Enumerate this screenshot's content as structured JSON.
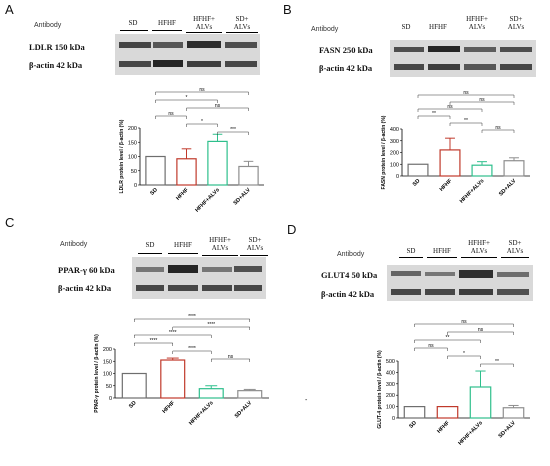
{
  "panels": [
    {
      "label": "A",
      "antibody_header": "Antibody",
      "groups": [
        "SD",
        "HFHF",
        "HFHF+\nALVs",
        "SD+\nALVs"
      ],
      "band_labels": [
        "LDLR  150 kDa",
        "β-actin 42 kDa"
      ],
      "chart_data": {
        "type": "bar",
        "categories": [
          "SD",
          "HFHF",
          "HFHF+ALVs",
          "SD+ALV"
        ],
        "values": [
          100,
          92,
          153,
          65
        ],
        "errors": [
          0,
          35,
          25,
          18
        ],
        "colors": [
          "#6e6e6e",
          "#c0392b",
          "#2ebf8c",
          "#8e8e8e"
        ],
        "ylabel": "LDLR protein level / β-actin (%)",
        "ylim": [
          0,
          200
        ],
        "yticks": [
          0,
          50,
          100,
          150,
          200
        ],
        "brackets": [
          {
            "from": 0,
            "to": 3,
            "label": "ns"
          },
          {
            "from": 0,
            "to": 2,
            "label": "*"
          },
          {
            "from": 1,
            "to": 3,
            "label": "ns"
          },
          {
            "from": 0,
            "to": 1,
            "label": "ns"
          },
          {
            "from": 1,
            "to": 2,
            "label": "*"
          },
          {
            "from": 2,
            "to": 3,
            "label": "***"
          }
        ]
      }
    },
    {
      "label": "B",
      "antibody_header": "Antibody",
      "groups": [
        "SD",
        "HFHF",
        "HFHF+\nALVs",
        "SD+\nALVs"
      ],
      "band_labels": [
        "FASN 250 kDa",
        "β-actin 42 kDa"
      ],
      "chart_data": {
        "type": "bar",
        "categories": [
          "SD",
          "HFHF",
          "HFHF+ALVs",
          "SD+ALV"
        ],
        "values": [
          100,
          222,
          92,
          130
        ],
        "errors": [
          0,
          100,
          30,
          25
        ],
        "colors": [
          "#6e6e6e",
          "#c0392b",
          "#2ebf8c",
          "#8e8e8e"
        ],
        "ylabel": "FASN protein level / β-actin (%)",
        "ylim": [
          0,
          400
        ],
        "yticks": [
          0,
          100,
          200,
          300,
          400
        ],
        "brackets": [
          {
            "from": 0,
            "to": 3,
            "label": "ns"
          },
          {
            "from": 1,
            "to": 3,
            "label": "ns"
          },
          {
            "from": 0,
            "to": 2,
            "label": "ns"
          },
          {
            "from": 0,
            "to": 1,
            "label": "**"
          },
          {
            "from": 1,
            "to": 2,
            "label": "**"
          },
          {
            "from": 2,
            "to": 3,
            "label": "ns"
          }
        ]
      }
    },
    {
      "label": "C",
      "antibody_header": "Antibody",
      "groups": [
        "SD",
        "HFHF",
        "HFHF+\nALVs",
        "SD+\nALVs"
      ],
      "band_labels": [
        "PPAR-γ 60 kDa",
        "β-actin 42 kDa"
      ],
      "chart_data": {
        "type": "bar",
        "categories": [
          "SD",
          "HFHF",
          "HFHF+ALVs",
          "SD+ALV"
        ],
        "values": [
          100,
          155,
          38,
          30
        ],
        "errors": [
          0,
          8,
          12,
          5
        ],
        "colors": [
          "#6e6e6e",
          "#c0392b",
          "#2ebf8c",
          "#8e8e8e"
        ],
        "ylabel": "PPAR-γ protein level / β-actin (%)",
        "ylim": [
          0,
          200
        ],
        "yticks": [
          0,
          50,
          100,
          150,
          200
        ],
        "brackets": [
          {
            "from": 0,
            "to": 3,
            "label": "****"
          },
          {
            "from": 1,
            "to": 3,
            "label": "****"
          },
          {
            "from": 0,
            "to": 2,
            "label": "****"
          },
          {
            "from": 0,
            "to": 1,
            "label": "****"
          },
          {
            "from": 1,
            "to": 2,
            "label": "****"
          },
          {
            "from": 2,
            "to": 3,
            "label": "ns"
          }
        ]
      }
    },
    {
      "label": "D",
      "antibody_header": "Antibody",
      "groups": [
        "SD",
        "HFHF",
        "HFHF+\nALVs",
        "SD+\nALVs"
      ],
      "band_labels": [
        "GLUT4 50 kDa",
        "β-actin 42 kDa"
      ],
      "chart_data": {
        "type": "bar",
        "categories": [
          "SD",
          "HFHF",
          "HFHF+ALVs",
          "SD+ALV"
        ],
        "values": [
          100,
          100,
          272,
          90
        ],
        "errors": [
          0,
          0,
          140,
          20
        ],
        "colors": [
          "#6e6e6e",
          "#c0392b",
          "#2ebf8c",
          "#8e8e8e"
        ],
        "ylabel": "GLUT-4 protein level / β-actin (%)",
        "ylim": [
          0,
          500
        ],
        "yticks": [
          0,
          100,
          200,
          300,
          400,
          500
        ],
        "brackets": [
          {
            "from": 0,
            "to": 3,
            "label": "ns"
          },
          {
            "from": 1,
            "to": 3,
            "label": "ns"
          },
          {
            "from": 0,
            "to": 2,
            "label": "**"
          },
          {
            "from": 0,
            "to": 1,
            "label": "ns"
          },
          {
            "from": 1,
            "to": 2,
            "label": "*"
          },
          {
            "from": 2,
            "to": 3,
            "label": "**"
          }
        ]
      }
    }
  ],
  "stray_mark": "-"
}
